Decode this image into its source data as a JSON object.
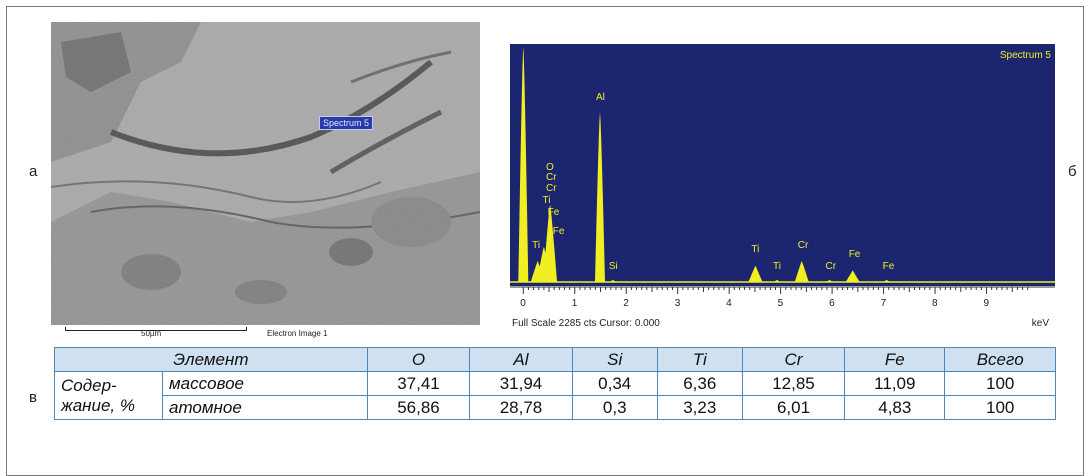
{
  "figure_labels": {
    "a": "а",
    "b": "б",
    "v": "в"
  },
  "sem_image": {
    "spectrum_box_label": "Spectrum 5",
    "scale_label": "50µm",
    "image_label": "Electron Image 1"
  },
  "chart_data": {
    "type": "line",
    "title": "Spectrum 5",
    "xlabel": "keV",
    "xlim": [
      -0.2,
      10
    ],
    "x_ticks": [
      "0",
      "1",
      "2",
      "3",
      "4",
      "5",
      "6",
      "7",
      "8",
      "9"
    ],
    "footer": "Full Scale 2285 cts Cursor: 0.000",
    "peaks": [
      {
        "x": 0.0,
        "height": 1.0
      },
      {
        "x": 0.28,
        "height": 0.09
      },
      {
        "x": 0.4,
        "height": 0.15
      },
      {
        "x": 0.52,
        "height": 0.33
      },
      {
        "x": 1.49,
        "height": 0.72
      },
      {
        "x": 1.74,
        "height": 0.01
      },
      {
        "x": 4.51,
        "height": 0.07
      },
      {
        "x": 4.93,
        "height": 0.01
      },
      {
        "x": 5.41,
        "height": 0.09
      },
      {
        "x": 5.95,
        "height": 0.01
      },
      {
        "x": 6.4,
        "height": 0.05
      },
      {
        "x": 7.06,
        "height": 0.01
      }
    ],
    "peak_labels": [
      {
        "text": "O",
        "x": 0.52,
        "level": 0.46
      },
      {
        "text": "Cr",
        "x": 0.52,
        "level": 0.42
      },
      {
        "text": "Cr",
        "x": 0.52,
        "level": 0.37
      },
      {
        "text": "Ti",
        "x": 0.45,
        "level": 0.32
      },
      {
        "text": "Fe",
        "x": 0.55,
        "level": 0.27
      },
      {
        "text": "Fe",
        "x": 0.65,
        "level": 0.19
      },
      {
        "text": "Ti",
        "x": 0.25,
        "level": 0.13
      },
      {
        "text": "Al",
        "x": 1.49,
        "level": 0.76
      },
      {
        "text": "Si",
        "x": 1.74,
        "level": 0.04
      },
      {
        "text": "Ti",
        "x": 4.51,
        "level": 0.11
      },
      {
        "text": "Ti",
        "x": 4.93,
        "level": 0.04
      },
      {
        "text": "Cr",
        "x": 5.41,
        "level": 0.13
      },
      {
        "text": "Cr",
        "x": 5.95,
        "level": 0.04
      },
      {
        "text": "Fe",
        "x": 6.4,
        "level": 0.09
      },
      {
        "text": "Fe",
        "x": 7.06,
        "level": 0.04
      }
    ]
  },
  "table": {
    "header": {
      "element": "Элемент",
      "cols": [
        "O",
        "Al",
        "Si",
        "Ti",
        "Cr",
        "Fe",
        "Всего"
      ]
    },
    "row_group_label": "Содер-\nжание, %",
    "rows": [
      {
        "type": "массовое",
        "values": [
          "37,41",
          "31,94",
          "0,34",
          "6,36",
          "12,85",
          "11,09",
          "100"
        ]
      },
      {
        "type": "атомное",
        "values": [
          "56,86",
          "28,78",
          "0,3",
          "3,23",
          "6,01",
          "4,83",
          "100"
        ]
      }
    ]
  },
  "colors": {
    "plot_bg": "#1c2670",
    "peak": "#f1ee22",
    "table_border": "#4f86b8",
    "table_header_bg": "#cfe1f1"
  }
}
